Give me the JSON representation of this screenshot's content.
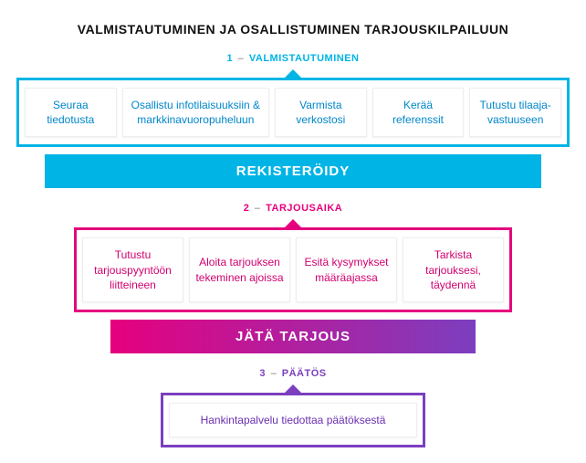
{
  "title": "VALMISTAUTUMINEN JA OSALLISTUMINEN TARJOUSKILPAILUUN",
  "colors": {
    "section1": "#00b4e6",
    "section2": "#e6007e",
    "section3": "#7b3fbf",
    "card_text1": "#0086c9",
    "card_text2": "#d10070",
    "card_text3": "#6a2fb0",
    "title_color": "#111111",
    "dash_color": "#777777"
  },
  "sections": [
    {
      "num": "1",
      "label": "VALMISTAUTUMINEN",
      "cards": [
        "Seuraa tiedotusta",
        "Osallistu infotilaisuuksiin & markkinavuoropuheluun",
        "Varmista verkostosi",
        "Kerää referenssit",
        "Tutustu tilaaja-vastuuseen"
      ],
      "banner": "REKISTERÖIDY"
    },
    {
      "num": "2",
      "label": "TARJOUSAIKA",
      "cards": [
        "Tutustu tarjouspyyntöön liitteineen",
        "Aloita tarjouksen tekeminen ajoissa",
        "Esitä kysymykset määräajassa",
        "Tarkista tarjouksesi, täydennä"
      ],
      "banner": "JÄTÄ TARJOUS"
    },
    {
      "num": "3",
      "label": "PÄÄTÖS",
      "cards": [
        "Hankintapalvelu tiedottaa päätöksestä"
      ]
    }
  ]
}
